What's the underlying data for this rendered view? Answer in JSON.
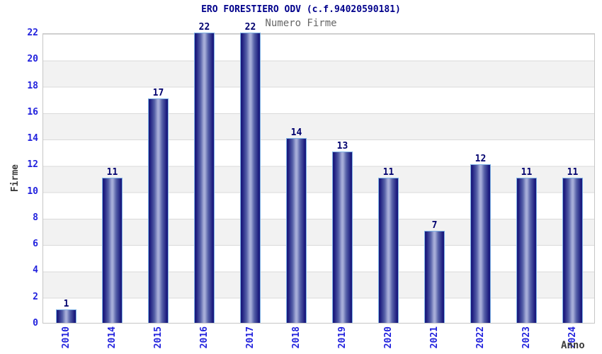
{
  "chart_data": {
    "type": "bar",
    "title": "ERO FORESTIERO ODV (c.f.94020590181)",
    "subtitle": "Numero Firme",
    "xlabel": "Anno",
    "ylabel": "Firme",
    "categories": [
      "2010",
      "2014",
      "2015",
      "2016",
      "2017",
      "2018",
      "2019",
      "2020",
      "2021",
      "2022",
      "2023",
      "2024"
    ],
    "values": [
      1,
      11,
      17,
      22,
      22,
      14,
      13,
      11,
      7,
      12,
      11,
      11
    ],
    "ylim": [
      0,
      22
    ],
    "ytick_step": 2,
    "yticks": [
      0,
      2,
      4,
      6,
      8,
      10,
      12,
      14,
      16,
      18,
      20,
      22
    ],
    "grid": "horizontal-lines-with-alternating-bands",
    "legend": "none",
    "value_labels_shown": true
  },
  "colors": {
    "title_color": "#00008b",
    "subtitle_color": "#666666",
    "tick_color": "#2222dd",
    "value_color": "#00006e",
    "axis_label_color": "#3c3c3c",
    "plot_border": "#c6c6c6",
    "grid_line": "#d9d9d9",
    "band_alt": "#f2f2f2",
    "bar_dark": "#1b1b7e",
    "bar_mid": "#5560a8",
    "bar_light": "#a6add8",
    "bar_border": "#7fb2e5"
  }
}
